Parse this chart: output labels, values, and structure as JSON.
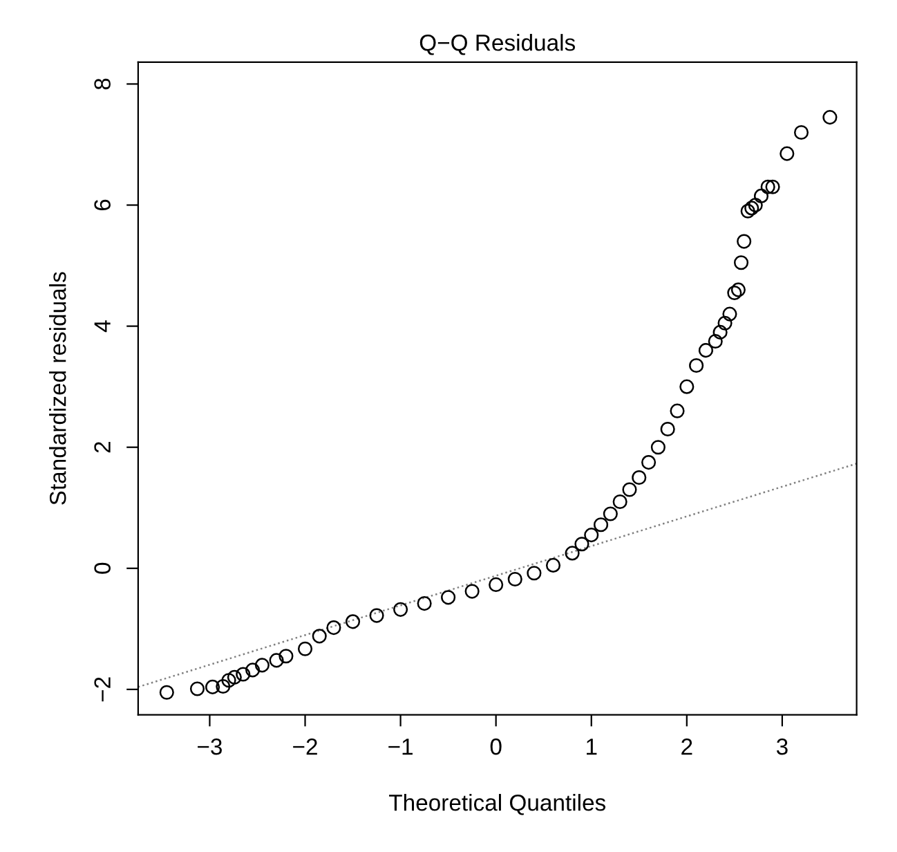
{
  "chart_data": {
    "type": "scatter",
    "title": "Q−Q Residuals",
    "xlabel": "Theoretical Quantiles",
    "ylabel": "Standardized residuals",
    "xlim": [
      -3.75,
      3.78
    ],
    "ylim": [
      -2.42,
      8.36
    ],
    "xticks": [
      {
        "value": -3,
        "label": "−3"
      },
      {
        "value": -2,
        "label": "−2"
      },
      {
        "value": -1,
        "label": "−1"
      },
      0,
      1,
      2,
      3
    ],
    "yticks": [
      {
        "value": -2,
        "label": "−2"
      },
      0,
      2,
      4,
      6,
      8
    ],
    "grid": false,
    "legend": false,
    "series": [
      {
        "marker": "circle",
        "color": "#000000",
        "x": [
          -3.45,
          -3.13,
          -2.97,
          -2.86,
          -2.8,
          -2.74,
          -2.65,
          -2.55,
          -2.45,
          -2.3,
          -2.2,
          -2.0,
          -1.85,
          -1.7,
          -1.5,
          -1.25,
          -1.0,
          -0.75,
          -0.5,
          -0.25,
          0.0,
          0.2,
          0.4,
          0.6,
          0.8,
          0.9,
          1.0,
          1.1,
          1.2,
          1.3,
          1.4,
          1.5,
          1.6,
          1.7,
          1.8,
          1.9,
          2.0,
          2.1,
          2.2,
          2.3,
          2.35,
          2.4,
          2.45,
          2.5,
          2.54,
          2.57,
          2.6,
          2.64,
          2.68,
          2.72,
          2.78,
          2.85,
          2.9,
          3.05,
          3.2,
          3.5
        ],
        "values": [
          -2.05,
          -1.99,
          -1.96,
          -1.95,
          -1.85,
          -1.8,
          -1.75,
          -1.68,
          -1.6,
          -1.52,
          -1.45,
          -1.33,
          -1.12,
          -0.98,
          -0.88,
          -0.78,
          -0.68,
          -0.58,
          -0.48,
          -0.38,
          -0.27,
          -0.18,
          -0.08,
          0.05,
          0.25,
          0.4,
          0.55,
          0.72,
          0.9,
          1.1,
          1.3,
          1.5,
          1.75,
          2.0,
          2.3,
          2.6,
          3.0,
          3.35,
          3.6,
          3.75,
          3.9,
          4.05,
          4.2,
          4.55,
          4.6,
          5.05,
          5.4,
          5.9,
          5.95,
          6.0,
          6.15,
          6.3,
          6.3,
          6.85,
          7.2,
          7.45
        ]
      },
      {
        "type": "line",
        "line_style": "dotted",
        "color": "#808080",
        "x": [
          -3.75,
          3.78
        ],
        "values": [
          -1.96,
          1.73
        ]
      }
    ]
  }
}
